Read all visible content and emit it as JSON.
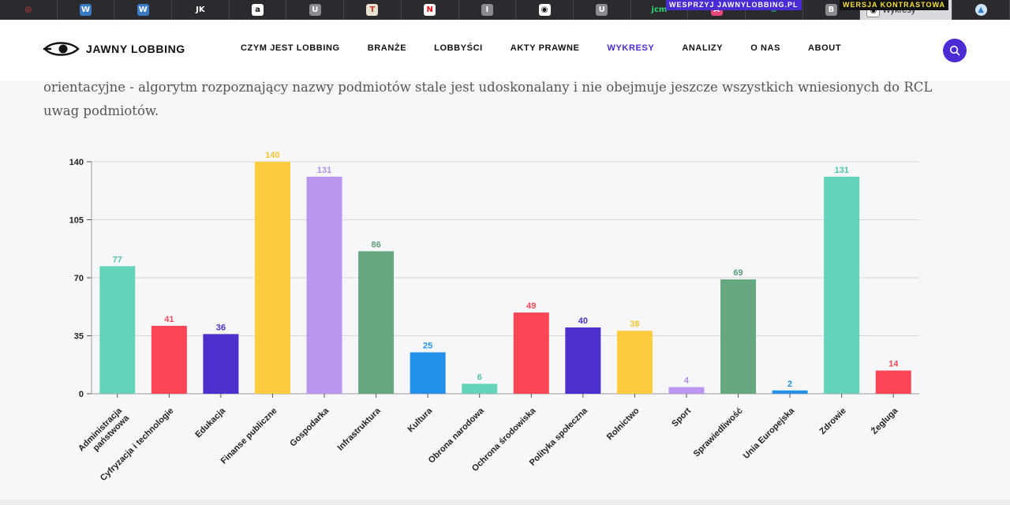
{
  "tabs": [
    {
      "icon": "target-icon",
      "glyph": "◎",
      "bg": "#2b2b2f",
      "fg": "#e4423c"
    },
    {
      "icon": "wordpress-icon",
      "glyph": "W",
      "bg": "#3a7bc8",
      "fg": "#ffffff"
    },
    {
      "icon": "wordpress-icon",
      "glyph": "W",
      "bg": "#3a7bc8",
      "fg": "#ffffff"
    },
    {
      "icon": "jk-icon",
      "glyph": "JK",
      "bg": "#2b2b2f",
      "fg": "#ffffff"
    },
    {
      "icon": "amazon-icon",
      "glyph": "a",
      "bg": "#ffffff",
      "fg": "#111111"
    },
    {
      "icon": "u-icon",
      "glyph": "U",
      "bg": "#8a8a90",
      "fg": "#ffffff"
    },
    {
      "icon": "t-icon",
      "glyph": "T",
      "bg": "#e9e2d0",
      "fg": "#c0392b"
    },
    {
      "icon": "netflix-icon",
      "glyph": "N",
      "bg": "#ffffff",
      "fg": "#e50914"
    },
    {
      "icon": "i-icon",
      "glyph": "I",
      "bg": "#8a8a90",
      "fg": "#ffffff"
    },
    {
      "icon": "eye-icon",
      "glyph": "◉",
      "bg": "#ffffff",
      "fg": "#111111"
    },
    {
      "icon": "u-icon",
      "glyph": "U",
      "bg": "#8a8a90",
      "fg": "#ffffff"
    },
    {
      "icon": "jcm-icon",
      "glyph": "jcm",
      "bg": "#2b2b2f",
      "fg": "#2ed573"
    },
    {
      "icon": "a-circle-icon",
      "glyph": "A",
      "bg": "#e9457a",
      "fg": "#ffffff"
    },
    {
      "icon": "stack-icon",
      "glyph": "≡",
      "bg": "#2b2b2f",
      "fg": "#20b486"
    },
    {
      "icon": "b-icon",
      "glyph": "B",
      "bg": "#8a8a90",
      "fg": "#ffffff"
    }
  ],
  "active_tab": {
    "title": "Wykresy",
    "icon": "eye-icon"
  },
  "last_tab": {
    "icon": "drive-icon"
  },
  "header": {
    "logo": "JAWNY LOBBING",
    "support": "WESPRZYJ JAWNYLOBBING.PL",
    "contrast": "WERSJA KONTRASTOWA",
    "nav": [
      "CZYM JEST LOBBING",
      "BRANŻE",
      "LOBBYŚCI",
      "AKTY PRAWNE",
      "WYKRESY",
      "ANALIZY",
      "O NAS",
      "ABOUT"
    ],
    "active_nav": "WYKRESY"
  },
  "paragraph": "orientacyjne - algorytm rozpoznający nazwy podmiotów stale jest udoskonalany i nie obejmuje jeszcze wszystkich wniesionych do RCL uwag podmiotów.",
  "chart_data": {
    "type": "bar",
    "categories": [
      "Administracja państwowa",
      "Cyfryzacja i technologie",
      "Edukacja",
      "Finanse publiczne",
      "Gospodarka",
      "Infrastruktura",
      "Kultura",
      "Obrona narodowa",
      "Ochrona środowiska",
      "Polityka społeczna",
      "Rolnictwo",
      "Sport",
      "Sprawiedliwość",
      "Unia Europejska",
      "Zdrowie",
      "Żegluga"
    ],
    "values": [
      77,
      41,
      36,
      140,
      131,
      86,
      25,
      6,
      49,
      40,
      38,
      4,
      69,
      2,
      131,
      14
    ],
    "colors": [
      "#64d3b9",
      "#fb4755",
      "#4c2fcc",
      "#fecd3f",
      "#ba96ef",
      "#65a880",
      "#2391ea",
      "#64d3b9",
      "#fb4755",
      "#4c2fcc",
      "#fecd3f",
      "#ba96ef",
      "#65a880",
      "#2391ea",
      "#64d3b9",
      "#fb4755"
    ],
    "label_colors": [
      "#4fc4a8",
      "#fb4755",
      "#4c2fcc",
      "#f5c530",
      "#b08de8",
      "#5b9d76",
      "#2391ea",
      "#4fc4a8",
      "#fb4755",
      "#4c2fcc",
      "#f5c530",
      "#b08de8",
      "#5b9d76",
      "#2391ea",
      "#4fc4a8",
      "#fb4755"
    ],
    "yticks": [
      0,
      35,
      70,
      105,
      140
    ],
    "ylim": [
      0,
      140
    ],
    "grid": true
  }
}
